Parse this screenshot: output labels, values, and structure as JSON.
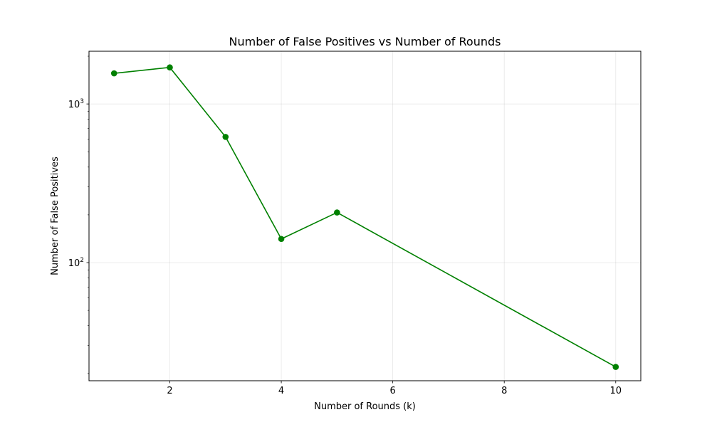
{
  "chart_data": {
    "type": "line",
    "title": "Number of False Positives vs Number of Rounds",
    "xlabel": "Number of Rounds (k)",
    "ylabel": "Number of False Positives",
    "xlim": [
      0.55,
      10.45
    ],
    "ylim": [
      18,
      2150
    ],
    "yscale": "log",
    "grid": true,
    "legend": "none",
    "x_ticks": [
      2,
      4,
      6,
      8,
      10
    ],
    "x_tick_labels": [
      "2",
      "4",
      "6",
      "8",
      "10"
    ],
    "y_major_ticks": [
      100,
      1000
    ],
    "y_tick_labels": [
      {
        "base": "10",
        "exp": "2"
      },
      {
        "base": "10",
        "exp": "3"
      }
    ],
    "y_minor_ticks": [
      20,
      30,
      40,
      50,
      60,
      70,
      80,
      90,
      200,
      300,
      400,
      500,
      600,
      700,
      800,
      900,
      2000
    ],
    "series": [
      {
        "color": "#008000",
        "marker": "circle",
        "x": [
          1,
          2,
          3,
          4,
          5,
          10
        ],
        "y": [
          1560,
          1700,
          620,
          141,
          207,
          22
        ]
      }
    ]
  }
}
